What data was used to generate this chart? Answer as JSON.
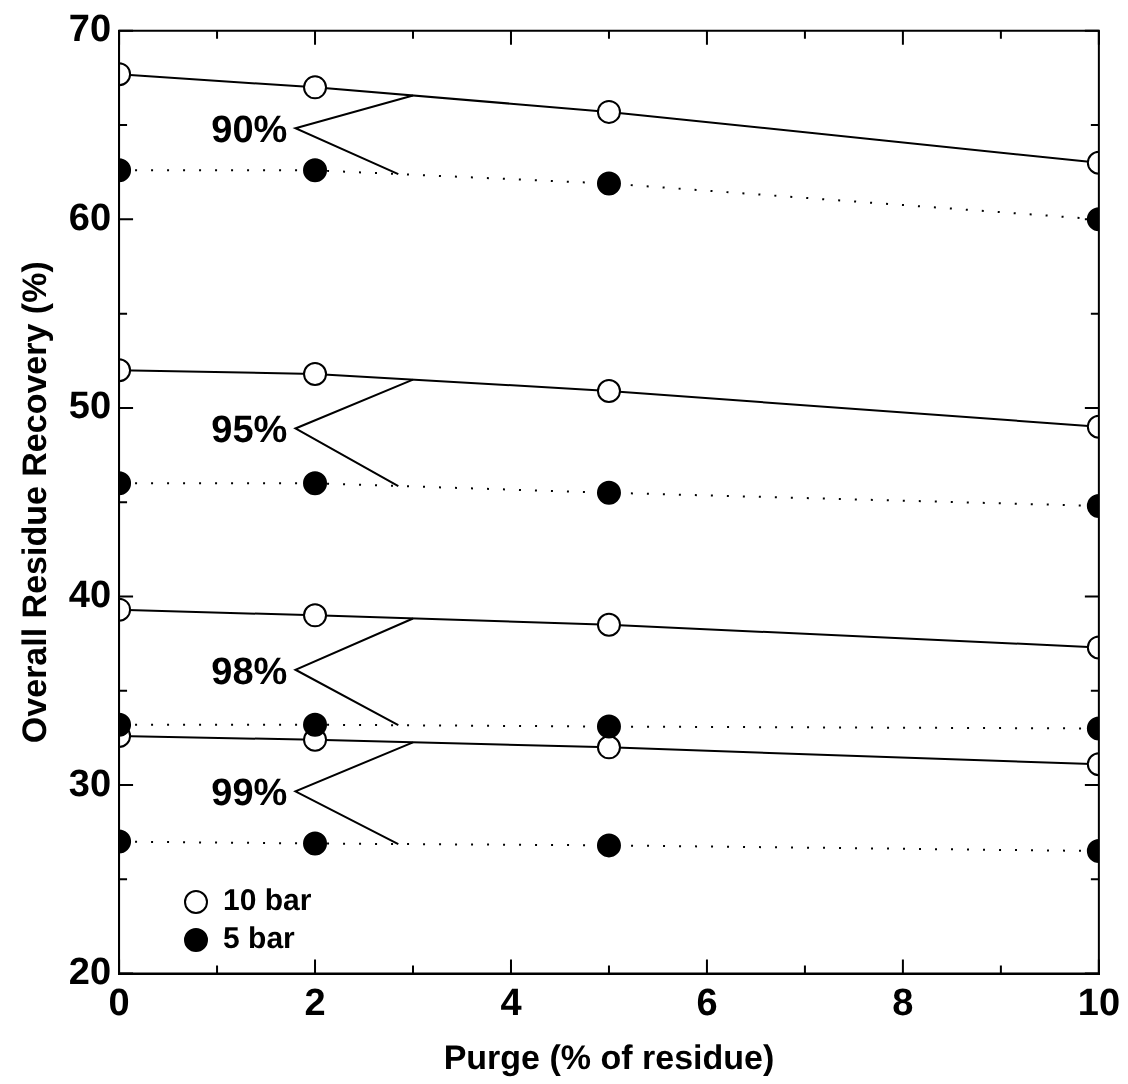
{
  "chart_data": {
    "type": "line",
    "xlabel": "Purge (% of residue)",
    "ylabel": "Overall Residue Recovery (%)",
    "x": [
      0,
      2,
      5,
      10
    ],
    "series": [
      {
        "name": "10 bar",
        "color": "#000000",
        "line_style": "solid",
        "values": [
          67.7,
          67.0,
          65.7,
          63.0
        ]
      },
      {
        "name": "5 bar",
        "color": "#000000",
        "line_style": "dotted",
        "values": [
          62.6,
          62.6,
          61.9,
          60.0
        ]
      },
      {
        "color": "#000000",
        "line_style": "solid",
        "values": [
          52.0,
          51.8,
          50.9,
          49.0
        ]
      },
      {
        "color": "#000000",
        "line_style": "dotted",
        "values": [
          46.0,
          46.0,
          45.5,
          44.8
        ]
      },
      {
        "color": "#000000",
        "line_style": "solid",
        "values": [
          39.3,
          39.0,
          38.5,
          37.3
        ]
      },
      {
        "color": "#000000",
        "line_style": "dotted",
        "values": [
          33.2,
          33.2,
          33.1,
          33.0
        ]
      },
      {
        "color": "#000000",
        "line_style": "solid",
        "values": [
          32.6,
          32.4,
          32.0,
          31.1
        ]
      },
      {
        "color": "#000000",
        "line_style": "dotted",
        "values": [
          27.0,
          26.9,
          26.8,
          26.5
        ]
      }
    ],
    "annotations": [
      "90%",
      "95%",
      "98%",
      "99%"
    ],
    "xlim": [
      0,
      10
    ],
    "xticks": [
      0,
      2,
      4,
      6,
      8,
      10
    ],
    "ylim": [
      20,
      70
    ],
    "yticks": [
      20,
      30,
      40,
      50,
      60,
      70
    ],
    "marker": "circle",
    "grid": false,
    "legend": "bottom left"
  }
}
